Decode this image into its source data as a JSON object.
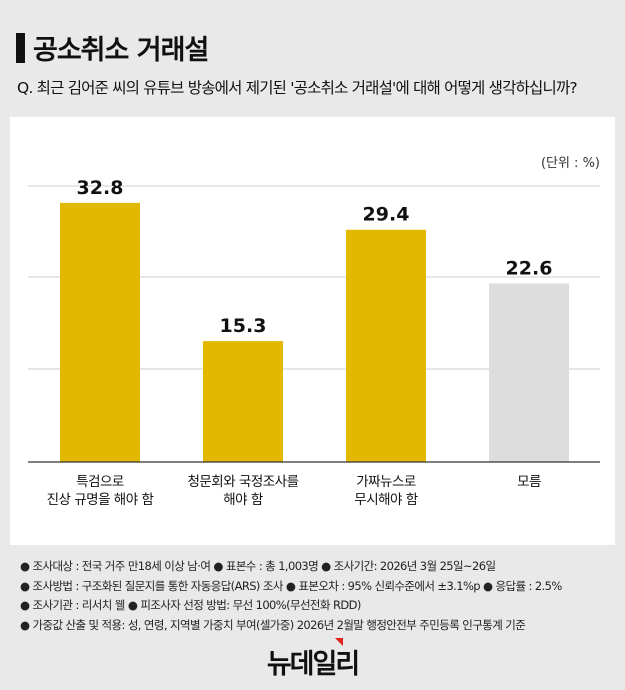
{
  "title": "공소취소 거래설",
  "question": "Q. 최근 김어준 씨의 유튜브 방송에서 제기된 '공소취소 거래설'에 대해 어떻게 생각하십니까?",
  "unit": "(단위 : %)",
  "chart_data": {
    "type": "bar",
    "categories": [
      [
        "특검으로",
        "진상 규명을 해야 함"
      ],
      [
        "청문회와 국정조사를",
        "해야 함"
      ],
      [
        "가짜뉴스로",
        "무시해야 함"
      ],
      [
        "모름"
      ]
    ],
    "values": [
      32.8,
      15.3,
      29.4,
      22.6
    ],
    "colors": [
      "#e2b800",
      "#e2b800",
      "#e2b800",
      "#dddddd"
    ],
    "ylim": [
      0,
      35
    ],
    "grid": true
  },
  "notes": [
    "● 조사대상 : 전국 거주 만18세 이상 남·여 ● 표본수 : 총 1,003명 ● 조사기간: 2026년 3월 25일~26일",
    "● 조사방법 : 구조화된 질문지를 통한 자동응답(ARS) 조사 ● 표본오차 : 95% 신뢰수준에서 ±3.1%p ● 응답률 : 2.5%",
    "● 조사기관 : 리서치 웰 ● 피조사자 선정 방법: 무선 100%(무선전화 RDD)",
    "● 가중값 산출 및 적용: 성, 연령, 지역별 가중치 부여(셀가중) 2026년 2월말 행정안전부 주민등록 인구통계 기준"
  ],
  "logo": "뉴데일리"
}
